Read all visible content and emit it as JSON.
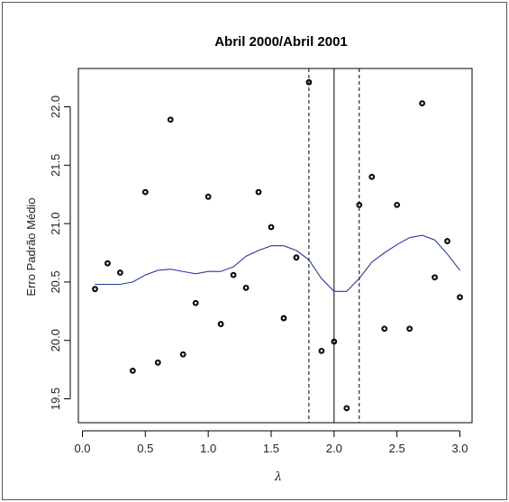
{
  "chart_data": {
    "type": "scatter",
    "title": "Abril 2000/Abril 2001",
    "xlabel": "λ",
    "ylabel": "Erro Padrão Médio",
    "xlim": [
      0.0,
      3.0
    ],
    "ylim": [
      19.5,
      22.0
    ],
    "x_ticks": [
      "0.0",
      "0.5",
      "1.0",
      "1.5",
      "2.0",
      "2.5",
      "3.0"
    ],
    "y_ticks": [
      "19.5",
      "20.0",
      "20.5",
      "21.0",
      "21.5",
      "22.0"
    ],
    "grid": false,
    "points": [
      {
        "x": 0.1,
        "y": 20.44
      },
      {
        "x": 0.2,
        "y": 20.66
      },
      {
        "x": 0.3,
        "y": 20.58
      },
      {
        "x": 0.4,
        "y": 19.74
      },
      {
        "x": 0.5,
        "y": 21.27
      },
      {
        "x": 0.6,
        "y": 19.81
      },
      {
        "x": 0.7,
        "y": 21.89
      },
      {
        "x": 0.8,
        "y": 19.88
      },
      {
        "x": 0.9,
        "y": 20.32
      },
      {
        "x": 1.0,
        "y": 21.23
      },
      {
        "x": 1.1,
        "y": 20.14
      },
      {
        "x": 1.2,
        "y": 20.56
      },
      {
        "x": 1.3,
        "y": 20.45
      },
      {
        "x": 1.4,
        "y": 21.27
      },
      {
        "x": 1.5,
        "y": 20.97
      },
      {
        "x": 1.6,
        "y": 20.19
      },
      {
        "x": 1.7,
        "y": 20.71
      },
      {
        "x": 1.8,
        "y": 22.21
      },
      {
        "x": 1.9,
        "y": 19.91
      },
      {
        "x": 2.0,
        "y": 19.99
      },
      {
        "x": 2.1,
        "y": 19.42
      },
      {
        "x": 2.2,
        "y": 21.16
      },
      {
        "x": 2.3,
        "y": 21.4
      },
      {
        "x": 2.4,
        "y": 20.1
      },
      {
        "x": 2.5,
        "y": 21.16
      },
      {
        "x": 2.6,
        "y": 20.1
      },
      {
        "x": 2.7,
        "y": 22.03
      },
      {
        "x": 2.8,
        "y": 20.54
      },
      {
        "x": 2.9,
        "y": 20.85
      },
      {
        "x": 3.0,
        "y": 20.37
      }
    ],
    "smooth_line": {
      "color": "#2a3a9a",
      "points": [
        {
          "x": 0.1,
          "y": 20.48
        },
        {
          "x": 0.2,
          "y": 20.48
        },
        {
          "x": 0.3,
          "y": 20.48
        },
        {
          "x": 0.4,
          "y": 20.5
        },
        {
          "x": 0.5,
          "y": 20.56
        },
        {
          "x": 0.6,
          "y": 20.6
        },
        {
          "x": 0.7,
          "y": 20.61
        },
        {
          "x": 0.8,
          "y": 20.59
        },
        {
          "x": 0.9,
          "y": 20.57
        },
        {
          "x": 1.0,
          "y": 20.59
        },
        {
          "x": 1.1,
          "y": 20.59
        },
        {
          "x": 1.2,
          "y": 20.63
        },
        {
          "x": 1.3,
          "y": 20.72
        },
        {
          "x": 1.4,
          "y": 20.77
        },
        {
          "x": 1.5,
          "y": 20.81
        },
        {
          "x": 1.6,
          "y": 20.81
        },
        {
          "x": 1.7,
          "y": 20.77
        },
        {
          "x": 1.8,
          "y": 20.69
        },
        {
          "x": 1.9,
          "y": 20.53
        },
        {
          "x": 2.0,
          "y": 20.42
        },
        {
          "x": 2.1,
          "y": 20.42
        },
        {
          "x": 2.2,
          "y": 20.53
        },
        {
          "x": 2.3,
          "y": 20.67
        },
        {
          "x": 2.4,
          "y": 20.75
        },
        {
          "x": 2.5,
          "y": 20.82
        },
        {
          "x": 2.6,
          "y": 20.88
        },
        {
          "x": 2.7,
          "y": 20.9
        },
        {
          "x": 2.8,
          "y": 20.86
        },
        {
          "x": 2.9,
          "y": 20.74
        },
        {
          "x": 3.0,
          "y": 20.6
        }
      ]
    },
    "vertical_lines": [
      {
        "x": 1.8,
        "style": "dashed"
      },
      {
        "x": 2.0,
        "style": "solid"
      },
      {
        "x": 2.2,
        "style": "dashed"
      }
    ]
  }
}
